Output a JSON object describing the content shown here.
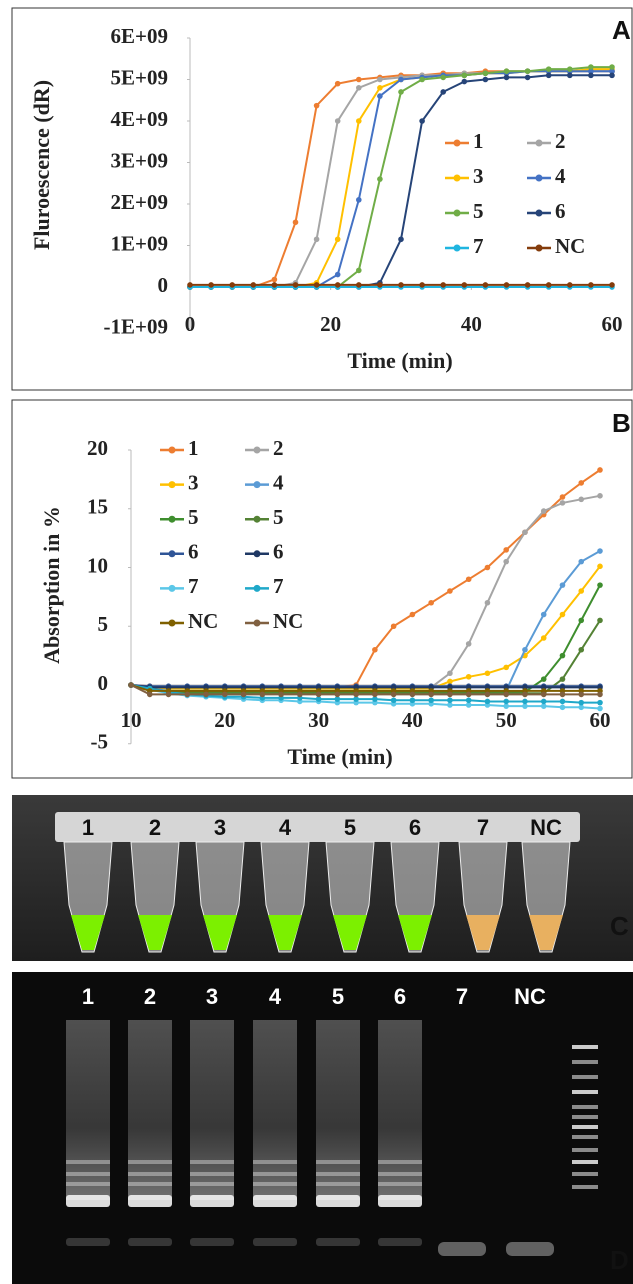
{
  "chart_data": [
    {
      "type": "line",
      "panel": "A",
      "y_label": "Fluroescence (dR)",
      "x_label": "Time (min)",
      "x": [
        0,
        3,
        6,
        9,
        12,
        15,
        18,
        21,
        24,
        27,
        30,
        33,
        36,
        39,
        42,
        45,
        48,
        51,
        54,
        57,
        60
      ],
      "xlim": [
        0,
        60
      ],
      "xticks": [
        0,
        20,
        40,
        60
      ],
      "ylim": [
        -1000000000.0,
        6000000000.0
      ],
      "yticks": [
        {
          "value": -1000000000.0,
          "label": "-1E+09"
        },
        0,
        {
          "value": 1000000000.0,
          "label": "1E+09"
        },
        {
          "value": 2000000000.0,
          "label": "2E+09"
        },
        {
          "value": 3000000000.0,
          "label": "3E+09"
        },
        {
          "value": 4000000000.0,
          "label": "4E+09"
        },
        {
          "value": 5000000000.0,
          "label": "5E+09"
        },
        {
          "value": 6000000000.0,
          "label": "6E+09"
        }
      ],
      "series": [
        {
          "name": "1",
          "color": "#ed7d31",
          "values": [
            0,
            0,
            0,
            0,
            180000000.0,
            1560000000.0,
            4370000000.0,
            4900000000.0,
            5000000000.0,
            5050000000.0,
            5100000000.0,
            5100000000.0,
            5150000000.0,
            5150000000.0,
            5200000000.0,
            5200000000.0,
            5200000000.0,
            5200000000.0,
            5200000000.0,
            5200000000.0,
            5200000000.0
          ]
        },
        {
          "name": "2",
          "color": "#a5a5a5",
          "values": [
            0,
            0,
            0,
            0,
            0,
            100000000.0,
            1150000000.0,
            4000000000.0,
            4800000000.0,
            5000000000.0,
            5050000000.0,
            5100000000.0,
            5100000000.0,
            5150000000.0,
            5150000000.0,
            5200000000.0,
            5200000000.0,
            5200000000.0,
            5200000000.0,
            5200000000.0,
            5200000000.0
          ]
        },
        {
          "name": "3",
          "color": "#ffc000",
          "values": [
            0,
            0,
            0,
            0,
            0,
            0,
            100000000.0,
            1150000000.0,
            4000000000.0,
            4800000000.0,
            5000000000.0,
            5050000000.0,
            5100000000.0,
            5100000000.0,
            5150000000.0,
            5150000000.0,
            5200000000.0,
            5200000000.0,
            5200000000.0,
            5250000000.0,
            5250000000.0
          ]
        },
        {
          "name": "4",
          "color": "#4472c4",
          "values": [
            0,
            0,
            0,
            0,
            0,
            0,
            0,
            300000000.0,
            2100000000.0,
            4600000000.0,
            5000000000.0,
            5050000000.0,
            5100000000.0,
            5100000000.0,
            5150000000.0,
            5150000000.0,
            5200000000.0,
            5200000000.0,
            5200000000.0,
            5200000000.0,
            5200000000.0
          ]
        },
        {
          "name": "5",
          "color": "#70ad47",
          "values": [
            0,
            0,
            0,
            0,
            0,
            0,
            0,
            0,
            400000000.0,
            2600000000.0,
            4700000000.0,
            5000000000.0,
            5050000000.0,
            5100000000.0,
            5150000000.0,
            5200000000.0,
            5200000000.0,
            5250000000.0,
            5250000000.0,
            5300000000.0,
            5300000000.0
          ]
        },
        {
          "name": "6",
          "color": "#264478",
          "values": [
            0,
            0,
            0,
            0,
            0,
            0,
            0,
            0,
            0,
            100000000.0,
            1150000000.0,
            4000000000.0,
            4700000000.0,
            4950000000.0,
            5000000000.0,
            5050000000.0,
            5050000000.0,
            5100000000.0,
            5100000000.0,
            5100000000.0,
            5100000000.0
          ]
        },
        {
          "name": "7",
          "color": "#1fb5e0",
          "values": [
            0,
            0,
            0,
            0,
            0,
            0,
            0,
            0,
            0,
            0,
            0,
            0,
            0,
            0,
            0,
            0,
            0,
            0,
            0,
            0,
            0
          ]
        },
        {
          "name": "NC",
          "color": "#843c0c",
          "values": [
            50000000.0,
            50000000.0,
            50000000.0,
            50000000.0,
            50000000.0,
            50000000.0,
            50000000.0,
            50000000.0,
            50000000.0,
            50000000.0,
            50000000.0,
            50000000.0,
            50000000.0,
            50000000.0,
            50000000.0,
            50000000.0,
            50000000.0,
            50000000.0,
            50000000.0,
            50000000.0,
            50000000.0
          ]
        }
      ]
    },
    {
      "type": "line",
      "panel": "B",
      "y_label": "Absorption in %",
      "x_label": "Time (min)",
      "x": [
        10,
        12,
        14,
        16,
        18,
        20,
        22,
        24,
        26,
        28,
        30,
        32,
        34,
        36,
        38,
        40,
        42,
        44,
        46,
        48,
        50,
        52,
        54,
        56,
        58,
        60
      ],
      "xlim": [
        10,
        60
      ],
      "xticks": [
        10,
        20,
        30,
        40,
        50,
        60
      ],
      "ylim": [
        -5,
        20
      ],
      "yticks": [
        -5,
        0,
        5,
        10,
        15,
        20
      ],
      "series": [
        {
          "name": "1",
          "color": "#ed7d31",
          "values": [
            0,
            -0.1,
            -0.2,
            -0.2,
            -0.2,
            -0.2,
            -0.2,
            -0.2,
            -0.2,
            -0.2,
            -0.2,
            -0.2,
            0,
            3,
            5,
            6,
            7,
            8,
            9,
            10,
            11.5,
            13,
            14.5,
            16,
            17.2,
            18.3
          ]
        },
        {
          "name": "2",
          "color": "#a5a5a5",
          "values": [
            0,
            -0.2,
            -0.3,
            -0.3,
            -0.3,
            -0.3,
            -0.3,
            -0.3,
            -0.3,
            -0.3,
            -0.3,
            -0.3,
            -0.3,
            -0.3,
            -0.3,
            -0.3,
            -0.2,
            1,
            3.5,
            7,
            10.5,
            13,
            14.8,
            15.5,
            15.8,
            16.1
          ]
        },
        {
          "name": "3",
          "color": "#ffc000",
          "values": [
            0,
            -0.2,
            -0.3,
            -0.3,
            -0.3,
            -0.3,
            -0.3,
            -0.3,
            -0.3,
            -0.3,
            -0.3,
            -0.3,
            -0.3,
            -0.3,
            -0.3,
            -0.3,
            -0.3,
            0.3,
            0.7,
            1,
            1.5,
            2.5,
            4,
            6,
            8,
            10.1
          ]
        },
        {
          "name": "4",
          "color": "#5b9bd5",
          "values": [
            0,
            -0.3,
            -0.5,
            -0.5,
            -0.5,
            -0.5,
            -0.5,
            -0.5,
            -0.5,
            -0.5,
            -0.5,
            -0.5,
            -0.5,
            -0.5,
            -0.5,
            -0.5,
            -0.5,
            -0.5,
            -0.5,
            -0.5,
            -0.5,
            3,
            6,
            8.5,
            10.5,
            11.4
          ]
        },
        {
          "name": "5",
          "color": "#3e8e2e",
          "values": [
            0,
            -0.3,
            -0.6,
            -0.6,
            -0.6,
            -0.6,
            -0.6,
            -0.6,
            -0.6,
            -0.6,
            -0.6,
            -0.6,
            -0.6,
            -0.6,
            -0.6,
            -0.6,
            -0.6,
            -0.6,
            -0.6,
            -0.6,
            -0.6,
            -0.6,
            0.5,
            2.5,
            5.5,
            8.5
          ]
        },
        {
          "name": "5",
          "color": "#548235",
          "values": [
            0,
            -0.3,
            -0.7,
            -0.7,
            -0.7,
            -0.7,
            -0.7,
            -0.7,
            -0.7,
            -0.7,
            -0.7,
            -0.7,
            -0.7,
            -0.7,
            -0.7,
            -0.7,
            -0.7,
            -0.7,
            -0.7,
            -0.7,
            -0.7,
            -0.7,
            -0.7,
            0.5,
            3,
            5.5
          ]
        },
        {
          "name": "6",
          "color": "#2f5597",
          "values": [
            0,
            -0.1,
            -0.1,
            -0.1,
            -0.1,
            -0.1,
            -0.1,
            -0.1,
            -0.1,
            -0.1,
            -0.1,
            -0.1,
            -0.1,
            -0.1,
            -0.1,
            -0.1,
            -0.1,
            -0.1,
            -0.1,
            -0.1,
            -0.1,
            -0.1,
            -0.1,
            -0.1,
            -0.1,
            -0.1
          ]
        },
        {
          "name": "6",
          "color": "#1f3864",
          "values": [
            0,
            -0.2,
            -0.2,
            -0.2,
            -0.2,
            -0.2,
            -0.2,
            -0.2,
            -0.2,
            -0.2,
            -0.2,
            -0.2,
            -0.2,
            -0.2,
            -0.2,
            -0.2,
            -0.2,
            -0.2,
            -0.2,
            -0.2,
            -0.2,
            -0.2,
            -0.2,
            -0.2,
            -0.2,
            -0.2
          ]
        },
        {
          "name": "7",
          "color": "#5bc7e8",
          "values": [
            0,
            -0.4,
            -0.7,
            -0.9,
            -1.0,
            -1.1,
            -1.2,
            -1.3,
            -1.3,
            -1.4,
            -1.4,
            -1.5,
            -1.5,
            -1.5,
            -1.6,
            -1.6,
            -1.6,
            -1.7,
            -1.7,
            -1.7,
            -1.8,
            -1.8,
            -1.8,
            -1.9,
            -1.9,
            -2.0
          ]
        },
        {
          "name": "7",
          "color": "#1fa8c9",
          "values": [
            0,
            -0.3,
            -0.6,
            -0.8,
            -0.9,
            -1.0,
            -1.0,
            -1.1,
            -1.1,
            -1.1,
            -1.2,
            -1.2,
            -1.2,
            -1.2,
            -1.3,
            -1.3,
            -1.3,
            -1.3,
            -1.3,
            -1.4,
            -1.4,
            -1.4,
            -1.4,
            -1.4,
            -1.5,
            -1.5
          ]
        },
        {
          "name": "NC",
          "color": "#7f6000",
          "values": [
            0,
            -0.5,
            -0.5,
            -0.5,
            -0.5,
            -0.5,
            -0.5,
            -0.5,
            -0.5,
            -0.5,
            -0.5,
            -0.5,
            -0.5,
            -0.5,
            -0.5,
            -0.5,
            -0.5,
            -0.5,
            -0.5,
            -0.5,
            -0.5,
            -0.5,
            -0.5,
            -0.5,
            -0.5,
            -0.5
          ]
        },
        {
          "name": "NC",
          "color": "#806040",
          "values": [
            0,
            -0.8,
            -0.8,
            -0.8,
            -0.8,
            -0.8,
            -0.8,
            -0.8,
            -0.8,
            -0.8,
            -0.8,
            -0.8,
            -0.8,
            -0.8,
            -0.8,
            -0.8,
            -0.8,
            -0.8,
            -0.8,
            -0.8,
            -0.8,
            -0.8,
            -0.8,
            -0.8,
            -0.8,
            -0.8
          ]
        }
      ]
    }
  ],
  "photos": [
    {
      "panel": "C",
      "tubes": [
        {
          "label": "1",
          "color": "#7cf000"
        },
        {
          "label": "2",
          "color": "#7cf000"
        },
        {
          "label": "3",
          "color": "#7cf000"
        },
        {
          "label": "4",
          "color": "#7cf000"
        },
        {
          "label": "5",
          "color": "#7cf000"
        },
        {
          "label": "6",
          "color": "#7cf000"
        },
        {
          "label": "7",
          "color": "#e8b060"
        },
        {
          "label": "NC",
          "color": "#e8b060"
        }
      ]
    },
    {
      "panel": "D",
      "lanes": [
        {
          "label": "1",
          "amplified": true
        },
        {
          "label": "2",
          "amplified": true
        },
        {
          "label": "3",
          "amplified": true
        },
        {
          "label": "4",
          "amplified": true
        },
        {
          "label": "5",
          "amplified": true
        },
        {
          "label": "6",
          "amplified": true
        },
        {
          "label": "7",
          "amplified": false
        },
        {
          "label": "NC",
          "amplified": false
        }
      ]
    }
  ]
}
